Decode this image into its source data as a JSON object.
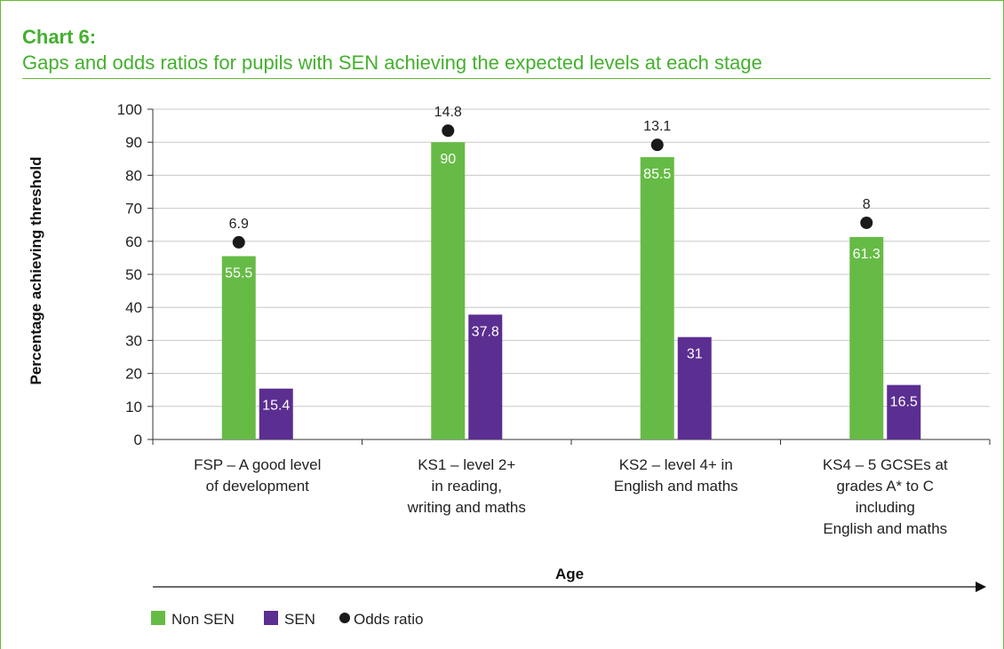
{
  "header": {
    "label": "Chart 6:",
    "title": "Gaps and odds ratios for pupils with SEN achieving the expected levels at each stage"
  },
  "colors": {
    "accent": "#44b02e",
    "non_sen": "#66bb46",
    "sen": "#5b2e91",
    "odds": "#1a1a1a"
  },
  "chart_data": {
    "type": "bar",
    "categories": [
      [
        "FSP – A good level",
        "of development"
      ],
      [
        "KS1 – level 2+",
        "in reading,",
        "writing and maths"
      ],
      [
        "KS2 – level 4+ in",
        "English and maths"
      ],
      [
        "KS4 – 5 GCSEs at",
        "grades A* to C",
        "including",
        "English and maths"
      ]
    ],
    "series": [
      {
        "name": "Non SEN",
        "values": [
          55.5,
          90,
          85.5,
          61.3
        ]
      },
      {
        "name": "SEN",
        "values": [
          15.4,
          37.8,
          31,
          16.5
        ]
      }
    ],
    "odds_ratio": {
      "name": "Odds ratio",
      "values": [
        6.9,
        14.8,
        13.1,
        8
      ],
      "marker_levels": [
        59.7,
        93.5,
        89.2,
        65.6
      ]
    },
    "ylabel": "Percentage achieving threshold",
    "xlabel": "Age",
    "ylim": [
      0,
      100
    ],
    "yticks": [
      0,
      10,
      20,
      30,
      40,
      50,
      60,
      70,
      80,
      90,
      100
    ],
    "grid": true,
    "legend_position": "bottom-left"
  }
}
